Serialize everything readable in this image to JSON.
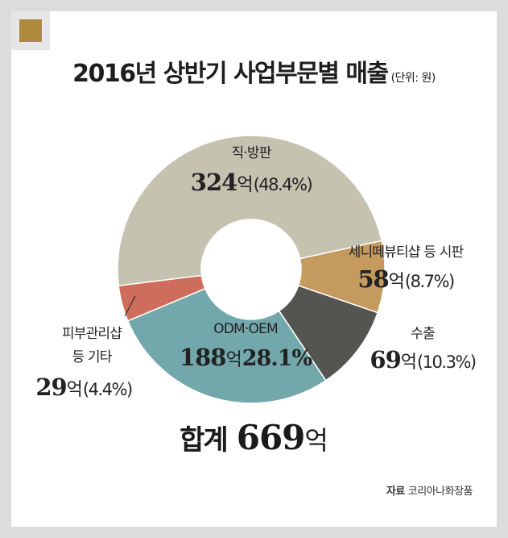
{
  "title": "2016년 상반기 사업부문별 매출",
  "unit_note": "(단위: 원)",
  "chart_data": {
    "type": "pie",
    "title": "2016년 상반기 사업부문별 매출",
    "donut": true,
    "start_angle_deg": 263,
    "slices": [
      {
        "key": "direct",
        "name": "직·방판",
        "value": 324,
        "unit": "억",
        "percent": "(48.4%)",
        "color": "#c5c2b0"
      },
      {
        "key": "senny",
        "name": "세니떼뷰티샵 등 시판",
        "value": 58,
        "unit": "억",
        "percent": "(8.7%)",
        "color": "#c49a5e"
      },
      {
        "key": "export",
        "name": "수출",
        "value": 69,
        "unit": "억",
        "percent": "(10.3%)",
        "color": "#545550"
      },
      {
        "key": "odm",
        "name": "ODM·OEM",
        "value": 188,
        "unit": "억",
        "percent": "28.1%",
        "color": "#72a8ab"
      },
      {
        "key": "skin",
        "name_line1": "피부관리샵",
        "name_line2": "등 기타",
        "value": 29,
        "unit": "억",
        "percent": "(4.4%)",
        "color": "#cf6d5d"
      }
    ]
  },
  "total": {
    "label": "합계",
    "value": "669",
    "unit": "억"
  },
  "source": {
    "label": "자료",
    "text": "코리아나화장품"
  },
  "colors": {
    "background": "#dcdcdc",
    "panel": "#ffffff",
    "accent": "#ad8a3c"
  }
}
